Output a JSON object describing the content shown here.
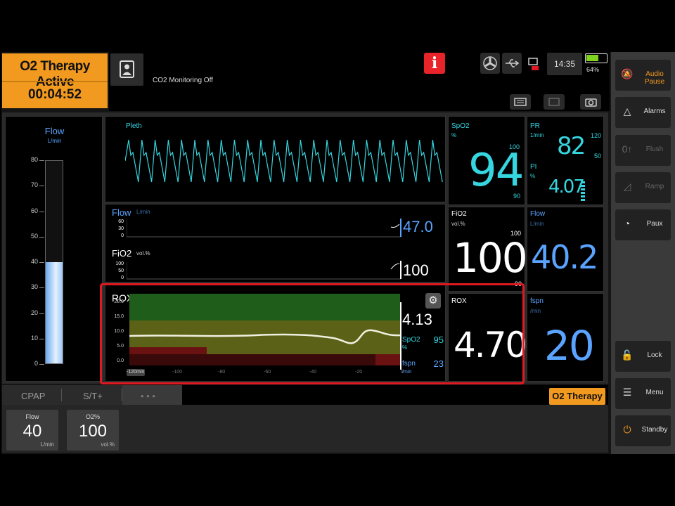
{
  "header": {
    "alarm_title": "O2 Therapy Active",
    "alarm_timer": "00:04:52",
    "co2_status": "CO2 Monitoring Off",
    "info_label": "i",
    "clock": "14:35",
    "battery_percent": "64%",
    "battery_level": 0.64,
    "icons": [
      "patient-icon",
      "fan-icon",
      "usb-icon",
      "network-icon",
      "keyboard-icon",
      "record-icon",
      "camera-icon"
    ]
  },
  "sidebar": {
    "items": [
      {
        "label": "Audio Pause",
        "icon": "audio-pause-icon",
        "enabled": true
      },
      {
        "label": "Alarms",
        "icon": "alarms-icon",
        "enabled": true
      },
      {
        "label": "Flush",
        "icon": "flush-icon",
        "enabled": false
      },
      {
        "label": "Ramp",
        "icon": "ramp-icon",
        "enabled": false
      },
      {
        "label": "Paux",
        "icon": "paux-icon",
        "enabled": true
      },
      {
        "label": "Lock",
        "icon": "lock-icon",
        "enabled": true
      },
      {
        "label": "Menu",
        "icon": "menu-icon",
        "enabled": true
      },
      {
        "label": "Standby",
        "icon": "standby-icon",
        "enabled": true
      }
    ]
  },
  "flow_bar": {
    "title": "Flow",
    "unit": "L/min",
    "ticks": [
      "80",
      "70",
      "60",
      "50",
      "40",
      "30",
      "20",
      "10",
      "0"
    ],
    "value": 40,
    "max": 80
  },
  "pleth": {
    "label": "Pleth"
  },
  "flow_trend": {
    "label": "Flow",
    "unit": "L/min",
    "ticks": [
      "60",
      "30",
      "0"
    ],
    "value": "47.0"
  },
  "fio2_trend": {
    "label": "FiO2",
    "unit": "vol.%",
    "ticks": [
      "100",
      "50",
      "0"
    ],
    "value": "100"
  },
  "rox_trend": {
    "label": "ROX",
    "y_ticks": [
      "20.0",
      "15.0",
      "10.0",
      "5.0",
      "0.0"
    ],
    "x_ticks": [
      "-120min",
      "-100",
      "-80",
      "-60",
      "-40",
      "-20",
      "0"
    ],
    "x_unit": "/min",
    "current_value": "4.13",
    "spo2_label": "SpO2",
    "spo2_unit": "%",
    "spo2_value": "95",
    "fspn_label": "fspn",
    "fspn_value": "23"
  },
  "params": {
    "spo2": {
      "label": "SpO2",
      "unit": "%",
      "value": "94",
      "high": "100",
      "low": "90"
    },
    "pr": {
      "label": "PR",
      "unit": "1/min",
      "value": "82",
      "high": "120",
      "low": "50"
    },
    "pi": {
      "label": "PI",
      "unit": "%",
      "value": "4.07"
    },
    "fio2": {
      "label": "FiO2",
      "unit": "vol.%",
      "value": "100",
      "high": "100",
      "low": "90"
    },
    "flow": {
      "label": "Flow",
      "unit": "L/min",
      "value": "40.2"
    },
    "rox": {
      "label": "ROX",
      "value": "4.70"
    },
    "fspn": {
      "label": "fspn",
      "unit": "/min",
      "value": "20"
    }
  },
  "modes": {
    "tabs": [
      "CPAP",
      "S/T+",
      "• • •"
    ],
    "active_tab": "O2 Therapy"
  },
  "settings": [
    {
      "name": "Flow",
      "value": "40",
      "unit": "L/min"
    },
    {
      "name": "O2%",
      "value": "100",
      "unit": "vol.%"
    }
  ],
  "colors": {
    "alarm": "#f29a1f",
    "spo2": "#35d6e0",
    "flow": "#5aa4ff",
    "highlight": "#e0181f"
  }
}
